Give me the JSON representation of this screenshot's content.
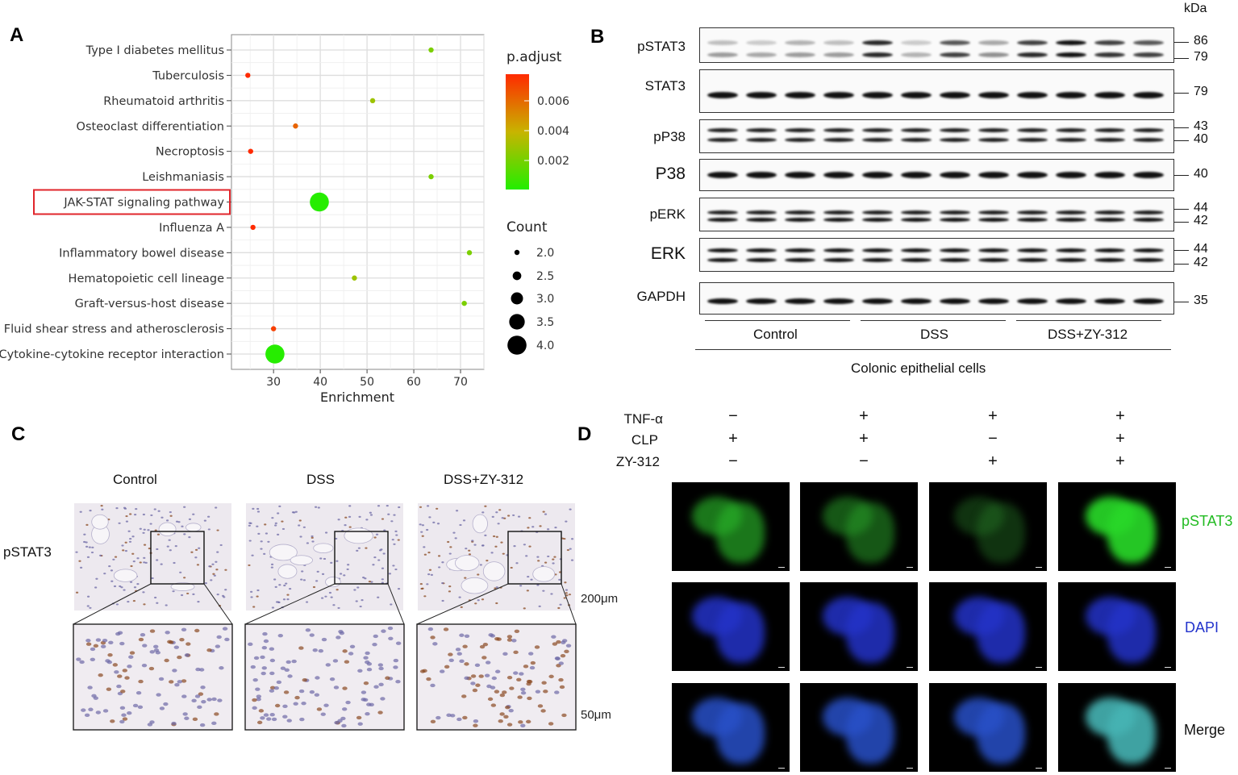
{
  "panels": {
    "a": "A",
    "b": "B",
    "c": "C",
    "d": "D"
  },
  "chart_data": {
    "type": "scatter",
    "xlabel": "Enrichment",
    "xlim": [
      21,
      75
    ],
    "x_ticks": [
      30,
      40,
      50,
      60,
      70
    ],
    "grid": true,
    "color_legend_title": "p.adjust",
    "color_ticks": [
      "0.006",
      "0.004",
      "0.002"
    ],
    "size_legend_title": "Count",
    "size_ticks": [
      "2.0",
      "2.5",
      "3.0",
      "3.5",
      "4.0"
    ],
    "categories": [
      "Type I diabetes mellitus",
      "Tuberculosis",
      "Rheumatoid arthritis",
      "Osteoclast differentiation",
      "Necroptosis",
      "Leishmaniasis",
      "JAK-STAT signaling pathway",
      "Influenza A",
      "Inflammatory bowel disease",
      "Hematopoietic cell lineage",
      "Graft-versus-host disease",
      "Fluid shear stress and atherosclerosis",
      "Cytokine-cytokine receptor interaction"
    ],
    "points": [
      {
        "term": "Type I diabetes mellitus",
        "enrichment": 63.7,
        "count": 2,
        "p_adjust": 0.0021
      },
      {
        "term": "Tuberculosis",
        "enrichment": 24.5,
        "count": 2,
        "p_adjust": 0.0078
      },
      {
        "term": "Rheumatoid arthritis",
        "enrichment": 51.2,
        "count": 2,
        "p_adjust": 0.0029
      },
      {
        "term": "Osteoclast differentiation",
        "enrichment": 34.7,
        "count": 2,
        "p_adjust": 0.0062
      },
      {
        "term": "Necroptosis",
        "enrichment": 25.1,
        "count": 2,
        "p_adjust": 0.0078
      },
      {
        "term": "Leishmaniasis",
        "enrichment": 63.7,
        "count": 2,
        "p_adjust": 0.0021
      },
      {
        "term": "JAK-STAT signaling pathway",
        "enrichment": 39.8,
        "count": 4,
        "p_adjust": 0.0001
      },
      {
        "term": "Influenza A",
        "enrichment": 25.6,
        "count": 2,
        "p_adjust": 0.0078
      },
      {
        "term": "Inflammatory bowel disease",
        "enrichment": 71.9,
        "count": 2,
        "p_adjust": 0.0021
      },
      {
        "term": "Hematopoietic cell lineage",
        "enrichment": 47.3,
        "count": 2,
        "p_adjust": 0.0029
      },
      {
        "term": "Graft-versus-host disease",
        "enrichment": 70.8,
        "count": 2,
        "p_adjust": 0.0021
      },
      {
        "term": "Fluid shear stress and atherosclerosis",
        "enrichment": 30.0,
        "count": 2,
        "p_adjust": 0.0072
      },
      {
        "term": "Cytokine-cytokine receptor interaction",
        "enrichment": 30.3,
        "count": 4,
        "p_adjust": 0.0001
      }
    ],
    "highlighted_term": "JAK-STAT signaling pathway",
    "colors": {
      "high": "#ff2a00",
      "mid": "#c8b400",
      "low": "#22ee00",
      "highlight_box": "#e0252b"
    }
  },
  "western_blot": {
    "unit_label": "kDa",
    "blots": [
      {
        "protein": "pSTAT3",
        "kda": [
          "86",
          "79"
        ]
      },
      {
        "protein": "STAT3",
        "kda": [
          "79"
        ]
      },
      {
        "protein": "pP38",
        "kda": [
          "43",
          "40"
        ]
      },
      {
        "protein": "P38",
        "kda": [
          "40"
        ]
      },
      {
        "protein": "pERK",
        "kda": [
          "44",
          "42"
        ]
      },
      {
        "protein": "ERK",
        "kda": [
          "44",
          "42"
        ]
      },
      {
        "protein": "GAPDH",
        "kda": [
          "35"
        ]
      }
    ],
    "groups": [
      "Control",
      "DSS",
      "DSS+ZY-312"
    ],
    "footer": "Colonic epithelial cells"
  },
  "ihc": {
    "columns": [
      "Control",
      "DSS",
      "DSS+ZY-312"
    ],
    "row_label": "pSTAT3",
    "scale_top": "200μm",
    "scale_bottom": "50μm"
  },
  "fluorescence": {
    "conditions": [
      {
        "name": "TNF-α",
        "signs": [
          "−",
          "+",
          "+",
          "+"
        ]
      },
      {
        "name": "CLP",
        "signs": [
          "+",
          "+",
          "−",
          "+"
        ]
      },
      {
        "name": "ZY-312",
        "signs": [
          "−",
          "−",
          "+",
          "+"
        ]
      }
    ],
    "channels": [
      {
        "name": "pSTAT3",
        "color": "#22cc22"
      },
      {
        "name": "DAPI",
        "color": "#2233cc"
      },
      {
        "name": "Merge",
        "color": "#111111"
      }
    ]
  }
}
